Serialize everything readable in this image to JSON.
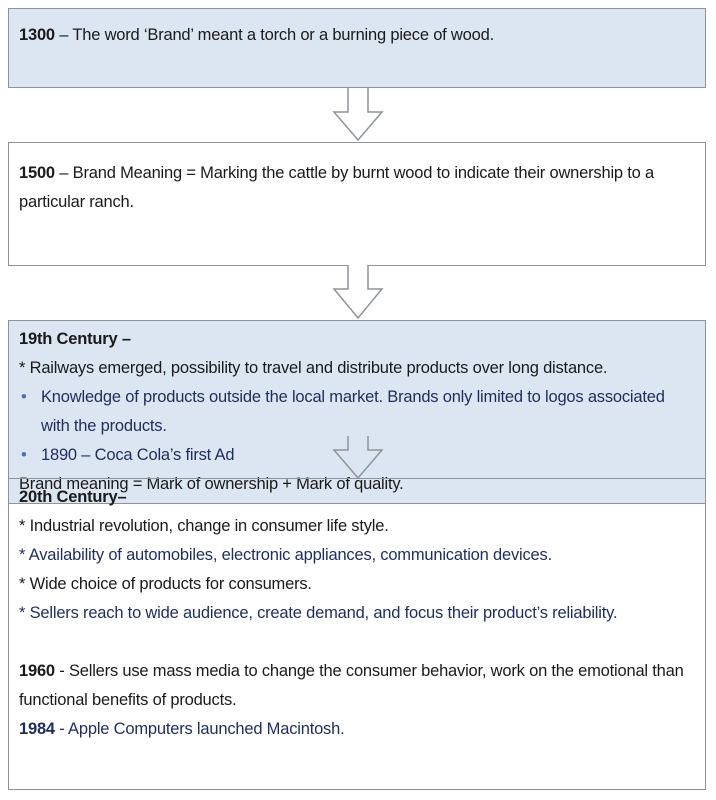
{
  "boxes": [
    {
      "year": "1300",
      "text": " – The word ‘Brand’ meant a torch or a burning piece of wood."
    },
    {
      "year": "1500",
      "text": " – Brand Meaning = Marking the cattle by burnt wood to indicate their ownership to a particular ranch."
    },
    {
      "heading": "19th Century –",
      "line1": "* Railways emerged, possibility to travel and distribute products over long distance.",
      "bullets": [
        "Knowledge of products outside the local market. Brands only limited to logos associated with the products.",
        "1890 – Coca Cola’s first Ad"
      ],
      "summary": "Brand meaning = Mark of ownership + Mark of quality."
    },
    {
      "heading": "20th Century–",
      "lines": [
        "* Industrial revolution, change in consumer life style.",
        "* Availability of automobiles, electronic appliances, communication devices.",
        "* Wide choice of products for consumers.",
        "* Sellers reach to wide audience, create demand, and focus their product’s reliability."
      ],
      "events": [
        {
          "year": "1960",
          "text": " - Sellers use mass media to change the consumer behavior, work on the emotional than functional benefits of products."
        },
        {
          "year": "1984",
          "text": " - Apple Computers launched Macintosh."
        }
      ]
    }
  ],
  "colors": {
    "box_fill": "#dce6f2",
    "border": "#8e9299",
    "text": "#1a1a1a",
    "navy": "#1f2d5a"
  }
}
